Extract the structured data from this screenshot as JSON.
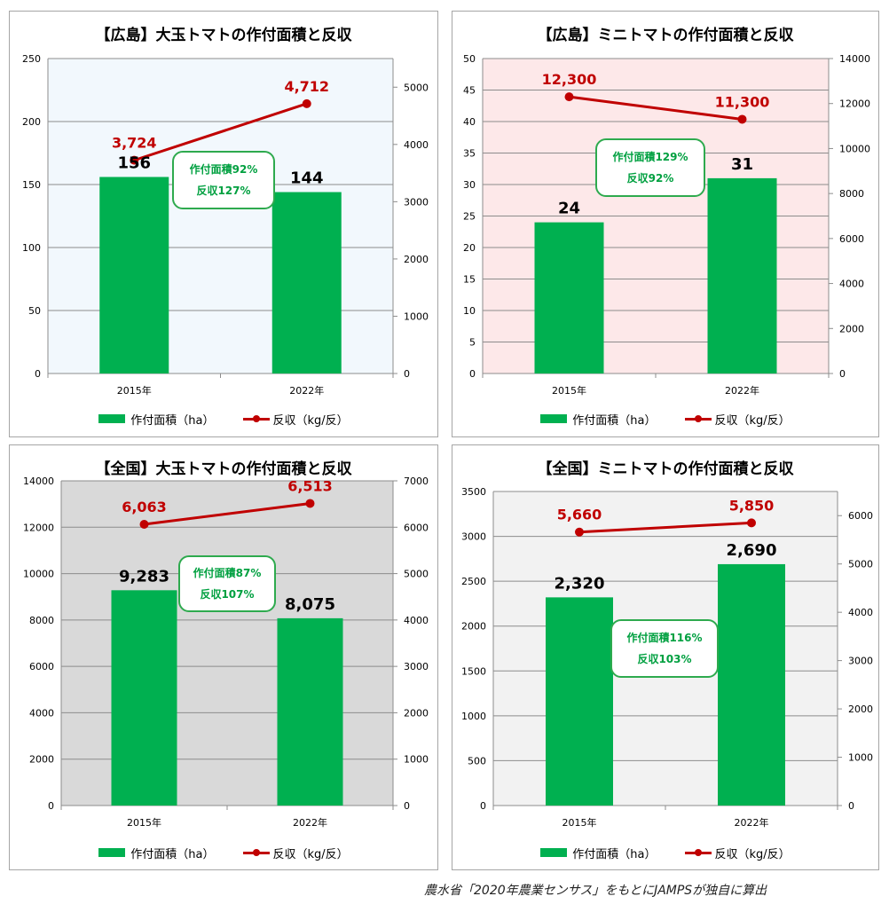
{
  "source_note": "農水省「2020年農業センサス」をもとにJAMPSが独自に算出",
  "legend": {
    "area_label": "作付面積（ha）",
    "yield_label": "反収（kg/反）"
  },
  "colors": {
    "bar": "#00b050",
    "line": "#c00000",
    "annotation": "#00a040"
  },
  "chart_data": [
    {
      "type": "bar",
      "title": "【広島】大玉トマトの作付面積と反収",
      "categories": [
        "2015年",
        "2022年"
      ],
      "background": "#f2f8fd",
      "ylim": [
        0,
        250
      ],
      "yticks": [
        0,
        50,
        100,
        150,
        200,
        250
      ],
      "y2lim": [
        0,
        5500
      ],
      "y2ticks": [
        0,
        1000,
        2000,
        3000,
        4000,
        5000
      ],
      "series": [
        {
          "name": "作付面積（ha）",
          "type": "bar",
          "axis": "left",
          "values": [
            156,
            144
          ],
          "labels": [
            "156",
            "144"
          ]
        },
        {
          "name": "反収（kg/反）",
          "type": "line",
          "axis": "right",
          "values": [
            3724,
            4712
          ],
          "labels": [
            "3,724",
            "4,712"
          ]
        }
      ],
      "annotation": [
        "作付面積92%",
        "反収127%"
      ]
    },
    {
      "type": "bar",
      "title": "【広島】ミニトマトの作付面積と反収",
      "categories": [
        "2015年",
        "2022年"
      ],
      "background": "#fde8e9",
      "ylim": [
        0,
        50
      ],
      "yticks": [
        0,
        5,
        10,
        15,
        20,
        25,
        30,
        35,
        40,
        45,
        50
      ],
      "y2lim": [
        0,
        14000
      ],
      "y2ticks": [
        0,
        2000,
        4000,
        6000,
        8000,
        10000,
        12000,
        14000
      ],
      "series": [
        {
          "name": "作付面積（ha）",
          "type": "bar",
          "axis": "left",
          "values": [
            24,
            31
          ],
          "labels": [
            "24",
            "31"
          ]
        },
        {
          "name": "反収（kg/反）",
          "type": "line",
          "axis": "right",
          "values": [
            12300,
            11300
          ],
          "labels": [
            "12,300",
            "11,300"
          ]
        }
      ],
      "annotation": [
        "作付面積129%",
        "反収92%"
      ]
    },
    {
      "type": "bar",
      "title": "【全国】大玉トマトの作付面積と反収",
      "categories": [
        "2015年",
        "2022年"
      ],
      "background": "#d9d9d9",
      "ylim": [
        0,
        14000
      ],
      "yticks": [
        0,
        2000,
        4000,
        6000,
        8000,
        10000,
        12000,
        14000
      ],
      "y2lim": [
        0,
        7000
      ],
      "y2ticks": [
        0,
        1000,
        2000,
        3000,
        4000,
        5000,
        6000,
        7000
      ],
      "series": [
        {
          "name": "作付面積（ha）",
          "type": "bar",
          "axis": "left",
          "values": [
            9283,
            8075
          ],
          "labels": [
            "9,283",
            "8,075"
          ]
        },
        {
          "name": "反収（kg/反）",
          "type": "line",
          "axis": "right",
          "values": [
            6063,
            6513
          ],
          "labels": [
            "6,063",
            "6,513"
          ]
        }
      ],
      "annotation": [
        "作付面積87%",
        "反収107%"
      ]
    },
    {
      "type": "bar",
      "title": "【全国】ミニトマトの作付面積と反収",
      "categories": [
        "2015年",
        "2022年"
      ],
      "background": "#f2f2f2",
      "ylim": [
        0,
        3500
      ],
      "yticks": [
        0,
        500,
        1000,
        1500,
        2000,
        2500,
        3000,
        3500
      ],
      "y2lim": [
        0,
        6500
      ],
      "y2ticks": [
        0,
        1000,
        2000,
        3000,
        4000,
        5000,
        6000
      ],
      "series": [
        {
          "name": "作付面積（ha）",
          "type": "bar",
          "axis": "left",
          "values": [
            2320,
            2690
          ],
          "labels": [
            "2,320",
            "2,690"
          ]
        },
        {
          "name": "反収（kg/反）",
          "type": "line",
          "axis": "right",
          "values": [
            5660,
            5850
          ],
          "labels": [
            "5,660",
            "5,850"
          ]
        }
      ],
      "annotation": [
        "作付面積116%",
        "反収103%"
      ]
    }
  ]
}
